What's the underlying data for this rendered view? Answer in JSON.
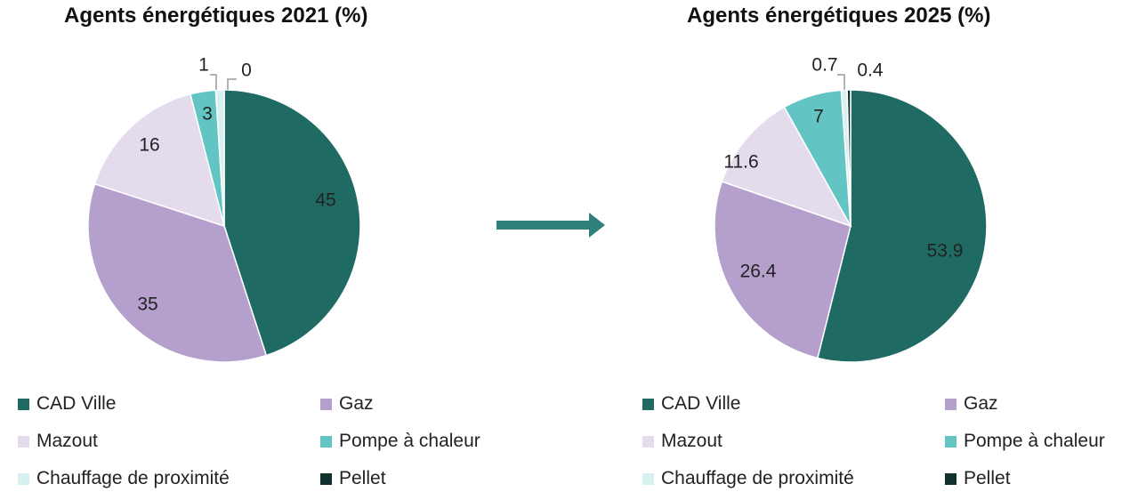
{
  "chart_data": [
    {
      "type": "pie",
      "title": "Agents énergétiques 2021 (%)",
      "slices": [
        {
          "name": "CAD Ville",
          "value": 45,
          "label": "45",
          "color": "#1f6b64"
        },
        {
          "name": "Gaz",
          "value": 35,
          "label": "35",
          "color": "#b59fcd"
        },
        {
          "name": "Mazout",
          "value": 16,
          "label": "16",
          "color": "#e4dced"
        },
        {
          "name": "Pompe à chaleur",
          "value": 3,
          "label": "3",
          "color": "#62c4c3"
        },
        {
          "name": "Chauffage de proximité",
          "value": 1,
          "label": "1",
          "color": "#d6f1f0"
        },
        {
          "name": "Pellet",
          "value": 0,
          "label": "0",
          "color": "#0f302d"
        }
      ]
    },
    {
      "type": "pie",
      "title": "Agents énergétiques 2025 (%)",
      "slices": [
        {
          "name": "CAD Ville",
          "value": 53.9,
          "label": "53.9",
          "color": "#1f6b64"
        },
        {
          "name": "Gaz",
          "value": 26.4,
          "label": "26.4",
          "color": "#b59fcd"
        },
        {
          "name": "Mazout",
          "value": 11.6,
          "label": "11.6",
          "color": "#e4dced"
        },
        {
          "name": "Pompe à chaleur",
          "value": 7,
          "label": "7",
          "color": "#62c4c3"
        },
        {
          "name": "Chauffage de proximité",
          "value": 0.7,
          "label": "0.7",
          "color": "#d6f1f0"
        },
        {
          "name": "Pellet",
          "value": 0.4,
          "label": "0.4",
          "color": "#0f302d"
        }
      ]
    }
  ],
  "legend": {
    "items": [
      {
        "label": "CAD Ville",
        "color": "#1f6b64"
      },
      {
        "label": "Gaz",
        "color": "#b59fcd"
      },
      {
        "label": "Mazout",
        "color": "#e4dced"
      },
      {
        "label": "Pompe à chaleur",
        "color": "#62c4c3"
      },
      {
        "label": "Chauffage de proximité",
        "color": "#d6f1f0"
      },
      {
        "label": "Pellet",
        "color": "#0f302d"
      }
    ]
  },
  "arrow_color": "#2f7f7b"
}
